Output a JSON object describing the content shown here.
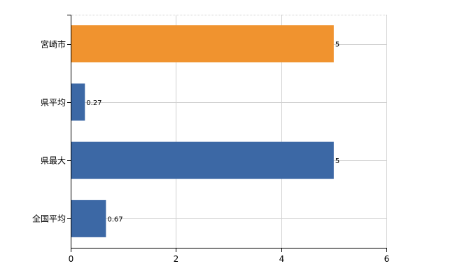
{
  "colors": {
    "highlight": "#f0932f",
    "default": "#3c68a5",
    "grid": "#d0d0d0",
    "axis": "#000000"
  },
  "chart_data": {
    "type": "bar",
    "orientation": "horizontal",
    "categories": [
      "宮崎市",
      "県平均",
      "県最大",
      "全国平均"
    ],
    "values": [
      5,
      0.27,
      5,
      0.67
    ],
    "value_labels": [
      "5",
      "0.27",
      "5",
      "0.67"
    ],
    "highlight_category": "宮崎市",
    "xlim": [
      0,
      6
    ],
    "xticks": [
      0,
      2,
      4,
      6
    ],
    "xtick_labels": [
      "0",
      "2",
      "4",
      "6"
    ],
    "grid": true,
    "title": "",
    "xlabel": "",
    "ylabel": ""
  }
}
